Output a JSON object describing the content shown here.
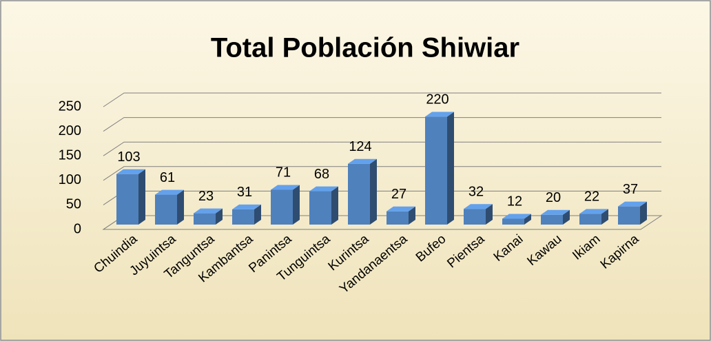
{
  "chart_data": {
    "type": "bar3d",
    "title": "Total Población Shiwiar",
    "categories": [
      "Chuindia",
      "Juyuintsa",
      "Tanguntsa",
      "Kambantsa",
      "Panintsa",
      "Tunguintsa",
      "Kurintsa",
      "Yandanaentsa",
      "Bufeo",
      "Pientsa",
      "Kanai",
      "Kawau",
      "Ikiam",
      "Kapirna"
    ],
    "values": [
      103,
      61,
      23,
      31,
      71,
      68,
      124,
      27,
      220,
      32,
      12,
      20,
      22,
      37
    ],
    "color": "#4f81bd",
    "ylim": [
      0,
      250
    ],
    "yticks": [
      0,
      50,
      100,
      150,
      200,
      250
    ],
    "grid": true
  }
}
